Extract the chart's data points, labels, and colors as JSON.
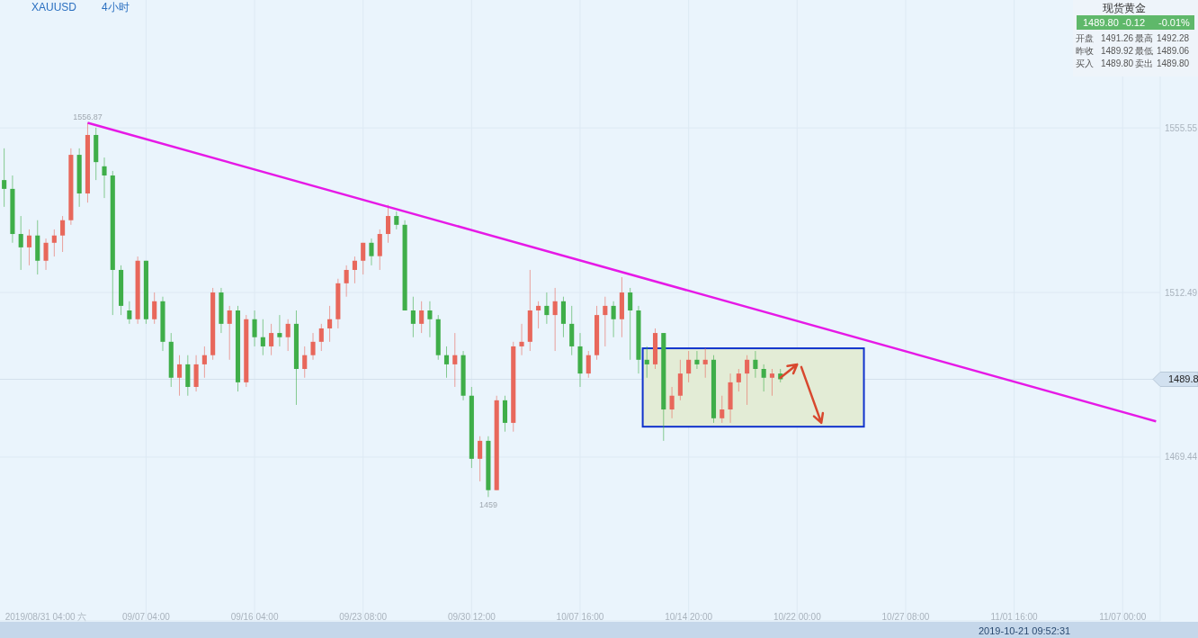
{
  "chart_data": {
    "type": "candlestick",
    "title": "XAUUSD",
    "subtitle": "4小时",
    "categories": [
      null,
      null,
      null,
      null,
      null,
      "2019/08/31 04:00 六",
      null,
      null,
      null,
      null,
      null,
      null,
      null,
      null,
      null,
      null,
      null,
      "09/07 04:00",
      null,
      null,
      null,
      null,
      null,
      null,
      null,
      null,
      null,
      null,
      null,
      null,
      "09/16 04:00",
      null,
      null,
      null,
      null,
      null,
      null,
      null,
      null,
      null,
      null,
      null,
      null,
      "09/23 08:00",
      null,
      null,
      null,
      null,
      null,
      null,
      null,
      null,
      null,
      null,
      null,
      null,
      "09/30 12:00",
      null,
      null,
      null,
      null,
      null,
      null,
      null,
      null,
      null,
      null,
      null,
      null,
      "10/07 16:00",
      null,
      null,
      null,
      null,
      null,
      null,
      null,
      null,
      null,
      null,
      null,
      null,
      "10/14 20:00",
      null,
      null,
      null,
      null,
      null,
      null,
      null,
      null,
      null,
      null,
      null,
      null,
      "10/22 00:00",
      null,
      null,
      null,
      null,
      null,
      null,
      null,
      null,
      null,
      null,
      null,
      null,
      "10/27 08:00",
      null,
      null,
      null,
      null,
      null,
      null,
      null,
      null,
      null,
      null,
      null,
      null,
      "11/01 16:00",
      null,
      null,
      null,
      null,
      null,
      null,
      null,
      null,
      null,
      null,
      null,
      null,
      "11/07 00:00",
      null,
      null,
      null,
      null
    ],
    "ohlc": [
      [
        1541.9,
        1550.2,
        1534.9,
        1539.6
      ],
      [
        1539.6,
        1543.1,
        1525.5,
        1527.8
      ],
      [
        1527.8,
        1532.5,
        1518.4,
        1524.3
      ],
      [
        1524.3,
        1529.0,
        1519.6,
        1527.4
      ],
      [
        1527.4,
        1531.4,
        1517.2,
        1520.8
      ],
      [
        1520.8,
        1526.6,
        1518.4,
        1525.5
      ],
      [
        1525.5,
        1529.0,
        1521.9,
        1527.4
      ],
      [
        1527.4,
        1532.5,
        1523.1,
        1531.4
      ],
      [
        1531.4,
        1550.2,
        1530.2,
        1548.5
      ],
      [
        1548.5,
        1550.2,
        1534.9,
        1538.4
      ],
      [
        1538.4,
        1556.87,
        1536.0,
        1553.7
      ],
      [
        1553.7,
        1555.6,
        1541.9,
        1546.6
      ],
      [
        1545.5,
        1547.8,
        1537.2,
        1543.1
      ],
      [
        1543.1,
        1544.3,
        1506.6,
        1518.4
      ],
      [
        1518.4,
        1519.6,
        1506.6,
        1509.0
      ],
      [
        1507.8,
        1510.2,
        1504.3,
        1505.5
      ],
      [
        1505.5,
        1521.9,
        1504.3,
        1520.8
      ],
      [
        1520.8,
        1520.8,
        1504.3,
        1505.5
      ],
      [
        1505.5,
        1512.5,
        1504.3,
        1510.2
      ],
      [
        1510.2,
        1511.4,
        1497.2,
        1499.6
      ],
      [
        1499.6,
        1501.9,
        1487.8,
        1490.2
      ],
      [
        1490.2,
        1496.1,
        1485.5,
        1493.7
      ],
      [
        1493.7,
        1496.1,
        1485.5,
        1487.8
      ],
      [
        1487.8,
        1496.1,
        1486.6,
        1493.7
      ],
      [
        1493.7,
        1498.4,
        1490.2,
        1496.1
      ],
      [
        1496.1,
        1513.7,
        1494.9,
        1512.5
      ],
      [
        1512.5,
        1513.7,
        1501.9,
        1504.3
      ],
      [
        1504.3,
        1509.0,
        1494.9,
        1507.8
      ],
      [
        1507.8,
        1509.0,
        1486.6,
        1489.0
      ],
      [
        1489.0,
        1506.6,
        1487.8,
        1505.5
      ],
      [
        1505.5,
        1507.8,
        1498.4,
        1500.8
      ],
      [
        1500.8,
        1505.5,
        1496.1,
        1498.4
      ],
      [
        1498.4,
        1504.3,
        1496.1,
        1501.9
      ],
      [
        1501.9,
        1506.6,
        1498.4,
        1500.8
      ],
      [
        1500.8,
        1505.5,
        1497.2,
        1504.3
      ],
      [
        1504.3,
        1507.8,
        1483.1,
        1492.5
      ],
      [
        1492.5,
        1498.4,
        1490.2,
        1496.1
      ],
      [
        1496.1,
        1501.9,
        1494.9,
        1499.6
      ],
      [
        1499.6,
        1504.3,
        1497.2,
        1503.1
      ],
      [
        1503.1,
        1509.0,
        1499.6,
        1505.5
      ],
      [
        1505.5,
        1516.1,
        1503.1,
        1514.9
      ],
      [
        1514.9,
        1519.6,
        1511.4,
        1518.4
      ],
      [
        1518.4,
        1521.9,
        1514.9,
        1520.8
      ],
      [
        1520.8,
        1525.5,
        1517.2,
        1525.5
      ],
      [
        1525.5,
        1526.6,
        1519.6,
        1522.0
      ],
      [
        1522.0,
        1529.0,
        1518.4,
        1527.8
      ],
      [
        1527.8,
        1535.4,
        1525.5,
        1532.5
      ],
      [
        1532.5,
        1533.7,
        1529.0,
        1530.2
      ],
      [
        1530.2,
        1531.4,
        1507.8,
        1507.8
      ],
      [
        1507.8,
        1511.4,
        1500.8,
        1504.3
      ],
      [
        1504.3,
        1510.2,
        1501.9,
        1507.8
      ],
      [
        1507.8,
        1510.2,
        1500.8,
        1505.5
      ],
      [
        1505.5,
        1506.6,
        1494.9,
        1496.1
      ],
      [
        1496.1,
        1498.4,
        1490.2,
        1493.7
      ],
      [
        1493.7,
        1501.9,
        1487.8,
        1496.1
      ],
      [
        1496.1,
        1497.2,
        1484.3,
        1485.5
      ],
      [
        1485.5,
        1487.8,
        1466.6,
        1469.0
      ],
      [
        1469.0,
        1474.9,
        1463.1,
        1473.7
      ],
      [
        1473.7,
        1474.9,
        1459.0,
        1460.8
      ],
      [
        1460.8,
        1485.5,
        1460.8,
        1484.3
      ],
      [
        1484.3,
        1485.5,
        1476.1,
        1478.4
      ],
      [
        1478.4,
        1499.6,
        1476.1,
        1498.4
      ],
      [
        1498.4,
        1504.3,
        1496.1,
        1499.6
      ],
      [
        1499.6,
        1518.4,
        1497.2,
        1507.8
      ],
      [
        1507.8,
        1510.2,
        1503.1,
        1509.0
      ],
      [
        1509.0,
        1512.5,
        1504.3,
        1506.6
      ],
      [
        1506.6,
        1513.7,
        1497.2,
        1510.2
      ],
      [
        1510.2,
        1511.4,
        1500.8,
        1504.3
      ],
      [
        1504.3,
        1509.0,
        1496.1,
        1498.4
      ],
      [
        1498.4,
        1501.9,
        1487.8,
        1491.3
      ],
      [
        1491.3,
        1497.2,
        1490.2,
        1496.1
      ],
      [
        1496.1,
        1509.0,
        1494.9,
        1506.6
      ],
      [
        1506.6,
        1511.4,
        1498.4,
        1509.0
      ],
      [
        1509.0,
        1510.2,
        1500.8,
        1505.5
      ],
      [
        1505.5,
        1516.5,
        1500.8,
        1512.5
      ],
      [
        1512.5,
        1513.7,
        1494.9,
        1507.8
      ],
      [
        1507.8,
        1509.0,
        1491.3,
        1494.9
      ],
      [
        1494.9,
        1498.4,
        1490.2,
        1493.7
      ],
      [
        1493.7,
        1503.1,
        1492.5,
        1501.9
      ],
      [
        1501.9,
        1501.9,
        1473.7,
        1481.9
      ],
      [
        1481.9,
        1487.8,
        1479.6,
        1485.5
      ],
      [
        1485.5,
        1494.9,
        1484.3,
        1491.3
      ],
      [
        1491.3,
        1497.2,
        1489.0,
        1494.9
      ],
      [
        1494.9,
        1497.2,
        1492.5,
        1493.7
      ],
      [
        1493.7,
        1497.9,
        1490.2,
        1494.9
      ],
      [
        1494.9,
        1496.1,
        1478.4,
        1479.6
      ],
      [
        1479.6,
        1485.5,
        1478.4,
        1481.9
      ],
      [
        1481.9,
        1491.3,
        1478.4,
        1489.0
      ],
      [
        1489.0,
        1492.5,
        1486.6,
        1491.3
      ],
      [
        1491.3,
        1496.1,
        1483.1,
        1494.9
      ],
      [
        1494.9,
        1497.2,
        1490.2,
        1492.5
      ],
      [
        1492.5,
        1493.7,
        1486.6,
        1490.2
      ],
      [
        1490.2,
        1492.5,
        1485.5,
        1491.3
      ],
      [
        1491.3,
        1492.5,
        1489.0,
        1489.8
      ],
      null,
      null,
      null,
      null,
      null,
      null,
      null,
      null,
      null,
      null,
      null,
      null,
      null,
      null,
      null,
      null,
      null,
      null,
      null,
      null,
      null,
      null,
      null,
      null,
      null,
      null,
      null,
      null,
      null,
      null,
      null,
      null,
      null,
      null,
      null,
      null,
      null,
      null,
      null,
      null,
      null,
      null,
      null,
      null,
      null
    ],
    "colors": [
      "#3fae49",
      "#3fae49",
      "#3fae49",
      "#e8675b",
      "#3fae49",
      "#e8675b",
      "#e8675b",
      "#e8675b",
      "#e8675b",
      "#3fae49",
      "#e8675b",
      "#3fae49",
      "#3fae49",
      "#3fae49",
      "#3fae49",
      "#3fae49",
      "#e8675b",
      "#3fae49",
      "#e8675b",
      "#3fae49",
      "#3fae49",
      "#e8675b",
      "#3fae49",
      "#e8675b",
      "#e8675b",
      "#e8675b",
      "#3fae49",
      "#e8675b",
      "#3fae49",
      "#e8675b",
      "#3fae49",
      "#3fae49",
      "#e8675b",
      "#3fae49",
      "#e8675b",
      "#3fae49",
      "#e8675b",
      "#e8675b",
      "#e8675b",
      "#e8675b",
      "#e8675b",
      "#e8675b",
      "#e8675b",
      "#e8675b",
      "#3fae49",
      "#e8675b",
      "#e8675b",
      "#3fae49",
      "#3fae49",
      "#3fae49",
      "#e8675b",
      "#3fae49",
      "#3fae49",
      "#3fae49",
      "#e8675b",
      "#3fae49",
      "#3fae49",
      "#e8675b",
      "#3fae49",
      "#e8675b",
      "#3fae49",
      "#e8675b",
      "#e8675b",
      "#e8675b",
      "#e8675b",
      "#3fae49",
      "#e8675b",
      "#3fae49",
      "#3fae49",
      "#3fae49",
      "#e8675b",
      "#e8675b",
      "#e8675b",
      "#3fae49",
      "#e8675b",
      "#3fae49",
      "#3fae49",
      "#3fae49",
      "#e8675b",
      "#3fae49",
      "#e8675b",
      "#e8675b",
      "#e8675b",
      "#3fae49",
      "#e8675b",
      "#3fae49",
      "#e8675b",
      "#e8675b",
      "#e8675b",
      "#e8675b",
      "#3fae49",
      "#3fae49",
      "#e8675b",
      "#3fae49",
      null,
      null,
      null,
      null,
      null,
      null,
      null,
      null,
      null,
      null,
      null,
      null,
      null,
      null,
      null,
      null,
      null,
      null,
      null,
      null,
      null,
      null,
      null,
      null,
      null,
      null,
      null,
      null,
      null,
      null,
      null,
      null,
      null,
      null,
      null,
      null,
      null,
      null,
      null,
      null,
      null,
      null,
      null,
      null,
      null
    ],
    "series": [
      {
        "type": "line",
        "color": "#e619e6",
        "values": [
          null,
          null,
          null,
          null,
          null,
          null,
          null,
          null,
          null,
          null,
          1556.87,
          null,
          null,
          null,
          null,
          null,
          null,
          null,
          null,
          null,
          null,
          null,
          null,
          null,
          null,
          null,
          null,
          null,
          null,
          null,
          null,
          null,
          null,
          null,
          null,
          null,
          null,
          null,
          null,
          null,
          null,
          null,
          null,
          null,
          null,
          null,
          null,
          null,
          null,
          null,
          null,
          null,
          null,
          null,
          null,
          null,
          null,
          null,
          null,
          null,
          null,
          null,
          null,
          null,
          null,
          null,
          null,
          null,
          null,
          null,
          null,
          null,
          null,
          null,
          null,
          null,
          null,
          null,
          null,
          null,
          null,
          null,
          null,
          null,
          null,
          null,
          null,
          null,
          null,
          null,
          null,
          null,
          null,
          null,
          null,
          null,
          null,
          null,
          null,
          null,
          null,
          null,
          null,
          null,
          null,
          null,
          null,
          null,
          null,
          null,
          null,
          null,
          null,
          null,
          null,
          null,
          null,
          null,
          null,
          null,
          null,
          null,
          null,
          null,
          null,
          null,
          null,
          null,
          null,
          null,
          null,
          null,
          null,
          null,
          null,
          null,
          null,
          null,
          1478.8
        ]
      }
    ],
    "ylim": [
      1426.6,
      1589.0
    ],
    "yticks": [
      1469.44,
      1512.49,
      1555.55
    ],
    "grid": true,
    "ref_lines": [
      {
        "axis": "y",
        "value": 1489.8,
        "label": "1489.8"
      }
    ],
    "annotations": [
      {
        "text": "1556.87",
        "y": 1556.87
      },
      {
        "text": "1459",
        "y": 1459
      },
      "现货黄金",
      "1489.80",
      "-0.12",
      "-0.01%",
      "开盘",
      "1491.26",
      "最高",
      "1492.28",
      "昨收",
      "1489.92",
      "最低",
      "1489.06",
      "买入",
      "1489.80",
      "卖出",
      "1489.80",
      "2019-10-21 09:52:31"
    ]
  }
}
